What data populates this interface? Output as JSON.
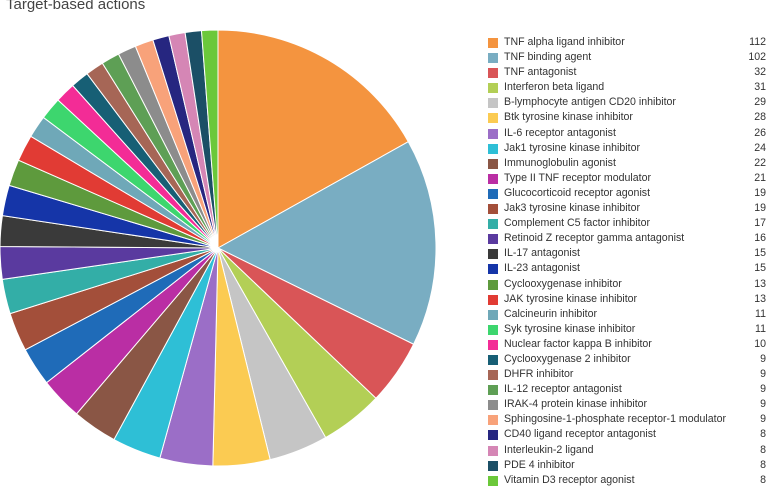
{
  "chart_data": {
    "type": "pie",
    "title": "Target-based actions",
    "categories": [
      "TNF alpha ligand inhibitor",
      "TNF binding agent",
      "TNF antagonist",
      "Interferon beta ligand",
      "B-lymphocyte antigen CD20 inhibitor",
      "Btk tyrosine kinase inhibitor",
      "IL-6 receptor antagonist",
      "Jak1 tyrosine kinase inhibitor",
      "Immunoglobulin agonist",
      "Type II TNF receptor modulator",
      "Glucocorticoid receptor agonist",
      "Jak3 tyrosine kinase inhibitor",
      "Complement C5 factor inhibitor",
      "Retinoid Z receptor gamma antagonist",
      "IL-17 antagonist",
      "IL-23 antagonist",
      "Cyclooxygenase inhibitor",
      "JAK tyrosine kinase inhibitor",
      "Calcineurin inhibitor",
      "Syk tyrosine kinase inhibitor",
      "Nuclear factor kappa B inhibitor",
      "Cyclooxygenase 2 inhibitor",
      "DHFR inhibitor",
      "IL-12 receptor antagonist",
      "IRAK-4 protein kinase inhibitor",
      "Sphingosine-1-phosphate receptor-1 modulator",
      "CD40 ligand receptor antagonist",
      "Interleukin-2 ligand",
      "PDE 4 inhibitor",
      "Vitamin D3 receptor agonist"
    ],
    "values": [
      112,
      102,
      32,
      31,
      29,
      28,
      26,
      24,
      22,
      21,
      19,
      19,
      17,
      16,
      15,
      15,
      13,
      13,
      11,
      11,
      10,
      9,
      9,
      9,
      9,
      9,
      8,
      8,
      8,
      8
    ],
    "colors": [
      "#f4943f",
      "#79adc2",
      "#d95557",
      "#b3cf56",
      "#c5c5c5",
      "#fbcb52",
      "#9b6ec7",
      "#2ebfd6",
      "#8a5645",
      "#ba2ea4",
      "#1f6bb8",
      "#a34f3a",
      "#33aea7",
      "#5a3a9f",
      "#3a3a3a",
      "#1535a8",
      "#5e9a3d",
      "#e13b34",
      "#6fa8b8",
      "#3dd66e",
      "#f32c96",
      "#175f75",
      "#a66656",
      "#5e9f55",
      "#8c8c8c",
      "#f8a27a",
      "#262680",
      "#d586b5",
      "#1b4f66",
      "#6bc83a"
    ],
    "legend_position": "right"
  }
}
